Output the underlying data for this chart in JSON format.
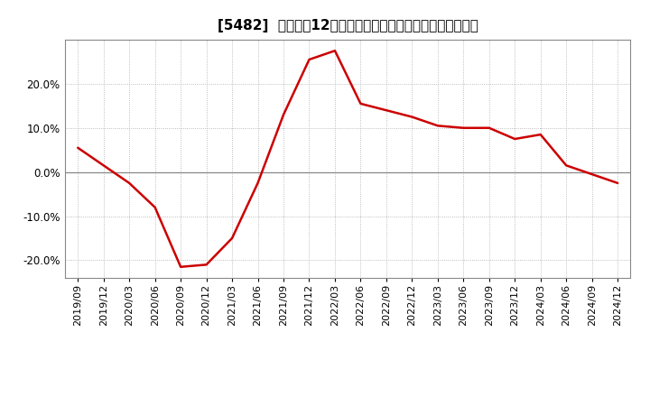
{
  "title": "[5482]  売上高の12か月移動合計の対前年同期増減率の推移",
  "line_color": "#cc0000",
  "bg_color": "#ffffff",
  "plot_bg_color": "#ffffff",
  "grid_color": "#aaaaaa",
  "zero_line_color": "#888888",
  "dates": [
    "2019/09",
    "2019/12",
    "2020/03",
    "2020/06",
    "2020/09",
    "2020/12",
    "2021/03",
    "2021/06",
    "2021/09",
    "2021/12",
    "2022/03",
    "2022/06",
    "2022/09",
    "2022/12",
    "2023/03",
    "2023/06",
    "2023/09",
    "2023/12",
    "2024/03",
    "2024/06",
    "2024/09",
    "2024/12"
  ],
  "values": [
    5.5,
    1.5,
    -2.5,
    -8.0,
    -21.5,
    -21.0,
    -15.0,
    -2.5,
    13.0,
    25.5,
    27.5,
    15.5,
    14.0,
    12.5,
    10.5,
    10.0,
    10.0,
    7.5,
    8.5,
    1.5,
    -0.5,
    -2.5
  ],
  "yticks": [
    -20.0,
    -10.0,
    0.0,
    10.0,
    20.0
  ],
  "ylim": [
    -24,
    30
  ],
  "title_fontsize": 11,
  "tick_fontsize": 8,
  "line_width": 1.8
}
